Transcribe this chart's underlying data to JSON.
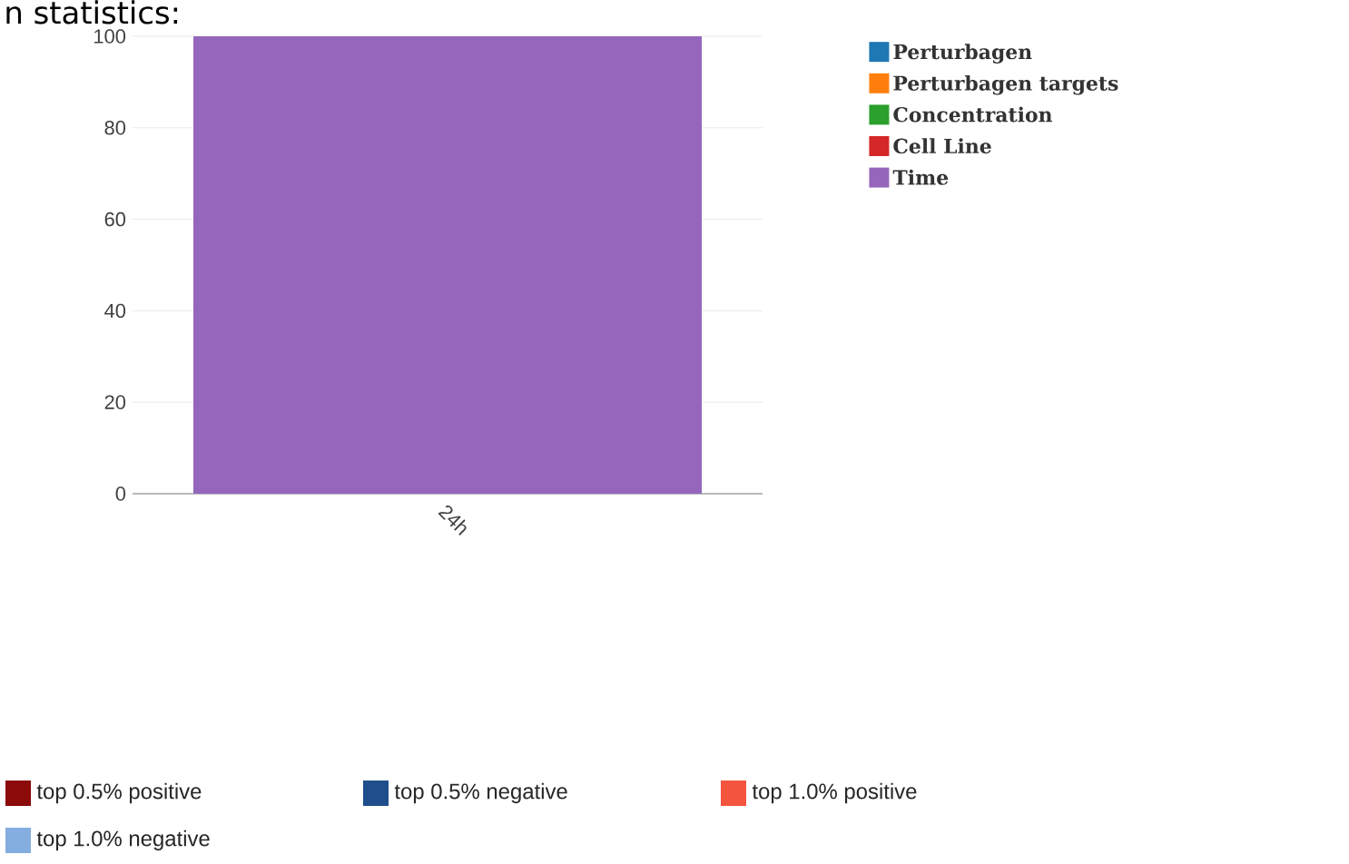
{
  "chart_data": [
    {
      "type": "bar",
      "title": "n statistics:",
      "categories": [
        "24h"
      ],
      "series": [
        {
          "name": "Perturbagen",
          "color": "#1f77b4",
          "values": [
            null
          ]
        },
        {
          "name": "Perturbagen targets",
          "color": "#ff7f0e",
          "values": [
            null
          ]
        },
        {
          "name": "Concentration",
          "color": "#2ca02c",
          "values": [
            null
          ]
        },
        {
          "name": "Cell Line",
          "color": "#d62728",
          "values": [
            null
          ]
        },
        {
          "name": "Time",
          "color": "#9467bd",
          "values": [
            100
          ]
        }
      ],
      "ylim": [
        0,
        100
      ],
      "yticks": [
        0,
        20,
        40,
        60,
        80,
        100
      ],
      "grid": "y",
      "legend": "right"
    },
    {
      "type": "other",
      "legend": "bottom",
      "series": [
        {
          "name": "top 0.5% positive",
          "color": "#8b0a0a"
        },
        {
          "name": "top 0.5% negative",
          "color": "#1f4e8c"
        },
        {
          "name": "top 1.0% positive",
          "color": "#f4553f"
        },
        {
          "name": "top 1.0% negative",
          "color": "#85aee0"
        }
      ]
    }
  ]
}
